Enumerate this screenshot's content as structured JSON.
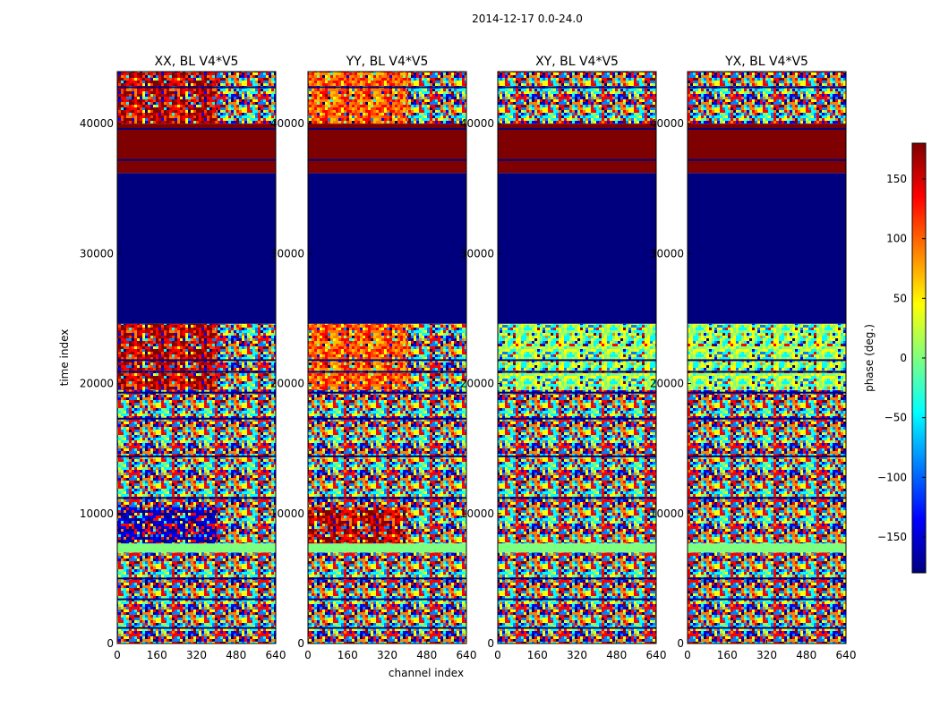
{
  "figure": {
    "suptitle": "2014-12-17 0.0-24.0"
  },
  "chart_data": [
    {
      "type": "heatmap",
      "title": "XX, BL V4*V5",
      "xlabel": "channel index",
      "ylabel": "time index",
      "xlim": [
        0,
        640
      ],
      "ylim": [
        0,
        44000
      ],
      "xticks": [
        "0",
        "160",
        "320",
        "480",
        "640"
      ],
      "yticks": [
        "0",
        "10000",
        "20000",
        "30000",
        "40000"
      ],
      "bands": [
        {
          "from": 0,
          "to": 7000,
          "pattern": "noise"
        },
        {
          "from": 7000,
          "to": 7700,
          "pattern": "green"
        },
        {
          "from": 7700,
          "to": 10500,
          "pattern": "noise-blue-left"
        },
        {
          "from": 10500,
          "to": 17000,
          "pattern": "noise"
        },
        {
          "from": 17000,
          "to": 19500,
          "pattern": "noise"
        },
        {
          "from": 19500,
          "to": 24600,
          "pattern": "red-left"
        },
        {
          "from": 24600,
          "to": 36200,
          "pattern": "navy"
        },
        {
          "from": 36200,
          "to": 40000,
          "pattern": "darkred"
        },
        {
          "from": 40000,
          "to": 44000,
          "pattern": "noise-red-left"
        }
      ]
    },
    {
      "type": "heatmap",
      "title": "YY, BL V4*V5",
      "xlabel": "channel index",
      "ylabel": "",
      "xlim": [
        0,
        640
      ],
      "ylim": [
        0,
        44000
      ],
      "xticks": [
        "0",
        "160",
        "320",
        "480",
        "640"
      ],
      "yticks": [
        "0",
        "10000",
        "20000",
        "30000",
        "40000"
      ],
      "bands": [
        {
          "from": 0,
          "to": 7000,
          "pattern": "noise"
        },
        {
          "from": 7000,
          "to": 7700,
          "pattern": "green"
        },
        {
          "from": 7700,
          "to": 10500,
          "pattern": "noise-red-left"
        },
        {
          "from": 10500,
          "to": 17000,
          "pattern": "noise"
        },
        {
          "from": 17000,
          "to": 19500,
          "pattern": "noise"
        },
        {
          "from": 19500,
          "to": 24600,
          "pattern": "orange-left"
        },
        {
          "from": 24600,
          "to": 36200,
          "pattern": "navy"
        },
        {
          "from": 36200,
          "to": 40000,
          "pattern": "darkred"
        },
        {
          "from": 40000,
          "to": 44000,
          "pattern": "noise-orange-left"
        }
      ]
    },
    {
      "type": "heatmap",
      "title": "XY, BL V4*V5",
      "xlabel": "",
      "ylabel": "",
      "xlim": [
        0,
        640
      ],
      "ylim": [
        0,
        44000
      ],
      "xticks": [
        "0",
        "160",
        "320",
        "480",
        "640"
      ],
      "yticks": [
        "0",
        "10000",
        "20000",
        "30000",
        "40000"
      ],
      "bands": [
        {
          "from": 0,
          "to": 7000,
          "pattern": "noise"
        },
        {
          "from": 7000,
          "to": 7700,
          "pattern": "green"
        },
        {
          "from": 7700,
          "to": 19500,
          "pattern": "noise"
        },
        {
          "from": 19500,
          "to": 24600,
          "pattern": "noise-yellow"
        },
        {
          "from": 24600,
          "to": 36200,
          "pattern": "navy"
        },
        {
          "from": 36200,
          "to": 40000,
          "pattern": "darkred"
        },
        {
          "from": 40000,
          "to": 44000,
          "pattern": "noise"
        }
      ]
    },
    {
      "type": "heatmap",
      "title": "YX, BL V4*V5",
      "xlabel": "",
      "ylabel": "",
      "xlim": [
        0,
        640
      ],
      "ylim": [
        0,
        44000
      ],
      "xticks": [
        "0",
        "160",
        "320",
        "480",
        "640"
      ],
      "yticks": [
        "0",
        "10000",
        "20000",
        "30000",
        "40000"
      ],
      "bands": [
        {
          "from": 0,
          "to": 7000,
          "pattern": "noise"
        },
        {
          "from": 7000,
          "to": 7700,
          "pattern": "green"
        },
        {
          "from": 7700,
          "to": 19500,
          "pattern": "noise"
        },
        {
          "from": 19500,
          "to": 24600,
          "pattern": "noise-yellow"
        },
        {
          "from": 24600,
          "to": 36200,
          "pattern": "navy"
        },
        {
          "from": 36200,
          "to": 40000,
          "pattern": "darkred"
        },
        {
          "from": 40000,
          "to": 44000,
          "pattern": "noise"
        }
      ]
    }
  ],
  "colorbar": {
    "label": "phase (deg.)",
    "range": [
      -180,
      180
    ],
    "ticks": [
      "150",
      "100",
      "50",
      "0",
      "−50",
      "−100",
      "−150"
    ],
    "tick_values": [
      150,
      100,
      50,
      0,
      -50,
      -100,
      -150
    ],
    "colormap": "jet",
    "colors": [
      "#00007f",
      "#0000ff",
      "#007fff",
      "#00ffff",
      "#7fff7f",
      "#ffff00",
      "#ff7f00",
      "#ff0000",
      "#7f0000"
    ]
  },
  "shared_xlabel": "channel index"
}
